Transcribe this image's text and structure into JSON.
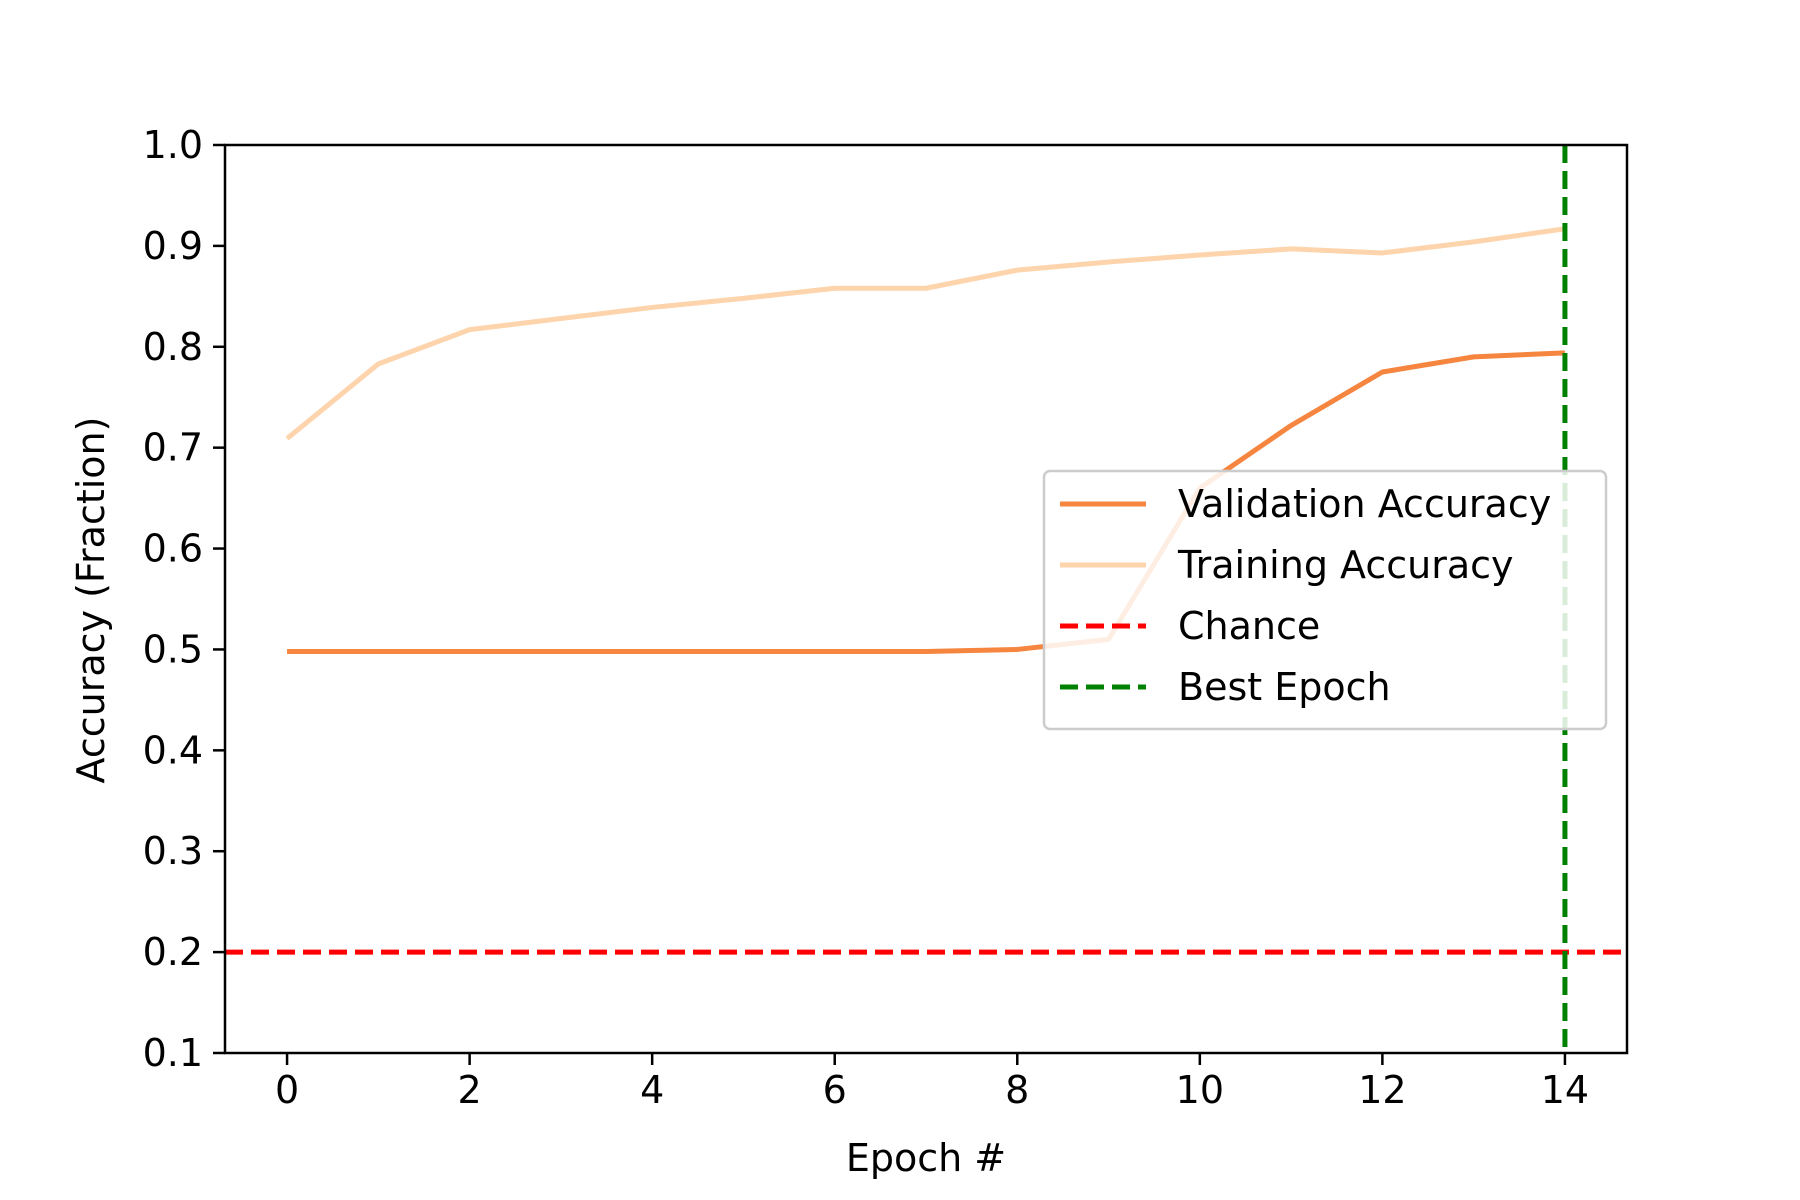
{
  "chart_data": {
    "type": "line",
    "title": "",
    "xlabel": "Epoch #",
    "ylabel": "Accuracy (Fraction)",
    "xlim": [
      -0.68,
      14.68
    ],
    "ylim": [
      0.1,
      1.0
    ],
    "xticks": [
      0,
      2,
      4,
      6,
      8,
      10,
      12,
      14
    ],
    "xtick_labels": [
      "0",
      "2",
      "4",
      "6",
      "8",
      "10",
      "12",
      "14"
    ],
    "yticks": [
      0.1,
      0.2,
      0.3,
      0.4,
      0.5,
      0.6,
      0.7,
      0.8,
      0.9,
      1.0
    ],
    "ytick_labels": [
      "0.1",
      "0.2",
      "0.3",
      "0.4",
      "0.5",
      "0.6",
      "0.7",
      "0.8",
      "0.9",
      "1.0"
    ],
    "grid": false,
    "legend_position": "center-right",
    "x": [
      0,
      1,
      2,
      3,
      4,
      5,
      6,
      7,
      8,
      9,
      10,
      11,
      12,
      13,
      14
    ],
    "series": [
      {
        "name": "Validation Accuracy",
        "color": "#f5853f",
        "style": "solid",
        "values": [
          0.498,
          0.498,
          0.498,
          0.498,
          0.498,
          0.498,
          0.498,
          0.498,
          0.5,
          0.51,
          0.66,
          0.722,
          0.775,
          0.79,
          0.794
        ]
      },
      {
        "name": "Training Accuracy",
        "color": "#fdd4ac",
        "style": "solid",
        "values": [
          0.709,
          0.783,
          0.817,
          0.828,
          0.839,
          0.848,
          0.858,
          0.858,
          0.876,
          0.884,
          0.891,
          0.897,
          0.893,
          0.904,
          0.917
        ]
      }
    ],
    "reference_lines": [
      {
        "name": "Chance",
        "orientation": "horizontal",
        "value": 0.2,
        "color": "#ff0000",
        "style": "dashed"
      },
      {
        "name": "Best Epoch",
        "orientation": "vertical",
        "value": 14,
        "color": "#008000",
        "style": "dashed"
      }
    ]
  }
}
